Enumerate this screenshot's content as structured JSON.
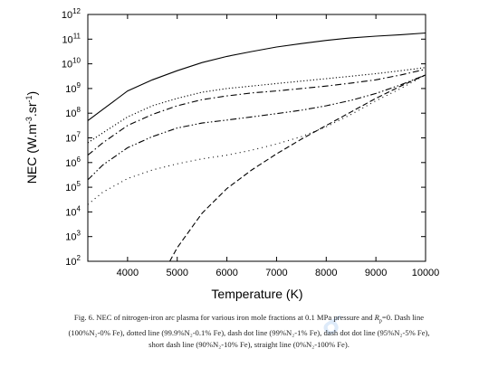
{
  "chart_data": {
    "type": "line",
    "xlabel": "Temperature (K)",
    "ylabel_main": "NEC (W.m",
    "ylabel_exp1": "-3",
    "ylabel_mid": ".sr",
    "ylabel_exp2": "-1",
    "ylabel_end": ")",
    "xlim": [
      3200,
      10000
    ],
    "ylim_log10": [
      2,
      12
    ],
    "y_scale": "log",
    "grid": false,
    "legend": "none",
    "x_ticks": [
      4000,
      5000,
      6000,
      7000,
      8000,
      9000,
      10000
    ],
    "y_tick_exponents": [
      2,
      3,
      4,
      5,
      6,
      7,
      8,
      9,
      10,
      11,
      12
    ],
    "y_tick_base": "10",
    "series": [
      {
        "style": "solid",
        "x": [
          3200,
          3500,
          4000,
          4500,
          5000,
          5500,
          6000,
          6500,
          7000,
          7500,
          8000,
          8500,
          9000,
          9500,
          10000
        ],
        "y_log10": [
          7.7,
          8.15,
          8.9,
          9.35,
          9.72,
          10.05,
          10.3,
          10.5,
          10.68,
          10.82,
          10.95,
          11.05,
          11.12,
          11.18,
          11.25
        ]
      },
      {
        "style": "dotted",
        "x": [
          3200,
          3500,
          4000,
          4500,
          5000,
          5500,
          6000,
          6500,
          7000,
          7500,
          8000,
          8500,
          9000,
          9500,
          10000
        ],
        "y_log10": [
          6.8,
          7.2,
          7.85,
          8.3,
          8.6,
          8.85,
          9.0,
          9.1,
          9.2,
          9.3,
          9.4,
          9.5,
          9.6,
          9.72,
          9.85
        ]
      },
      {
        "style": "dash-dot",
        "x": [
          3200,
          3500,
          4000,
          4500,
          5000,
          5500,
          6000,
          6500,
          7000,
          7500,
          8000,
          8500,
          9000,
          9500,
          10000
        ],
        "y_log10": [
          6.3,
          6.8,
          7.5,
          7.95,
          8.3,
          8.55,
          8.7,
          8.82,
          8.9,
          9.0,
          9.1,
          9.22,
          9.35,
          9.55,
          9.78
        ]
      },
      {
        "style": "dash-dot-dot",
        "x": [
          3200,
          3500,
          4000,
          4500,
          5000,
          5500,
          6000,
          6500,
          7000,
          7500,
          8000,
          8500,
          9000,
          9500,
          10000
        ],
        "y_log10": [
          5.3,
          5.9,
          6.6,
          7.05,
          7.4,
          7.6,
          7.72,
          7.85,
          7.98,
          8.12,
          8.3,
          8.52,
          8.8,
          9.15,
          9.55
        ]
      },
      {
        "style": "short-dash",
        "x": [
          3200,
          3500,
          4000,
          4500,
          5000,
          5500,
          6000,
          6500,
          7000,
          7500,
          8000,
          8500,
          9000,
          9500,
          10000
        ],
        "y_log10": [
          4.3,
          4.8,
          5.35,
          5.7,
          5.95,
          6.15,
          6.3,
          6.5,
          6.75,
          7.05,
          7.45,
          7.95,
          8.5,
          9.0,
          9.55
        ]
      },
      {
        "style": "long-dash",
        "x": [
          4850,
          5000,
          5500,
          6000,
          6500,
          7000,
          7500,
          8000,
          8500,
          9000,
          9500,
          10000
        ],
        "y_log10": [
          2.0,
          2.55,
          3.95,
          4.95,
          5.7,
          6.35,
          6.95,
          7.5,
          8.05,
          8.6,
          9.1,
          9.55
        ]
      }
    ]
  },
  "caption": {
    "line1_a": "Fig. 6. NEC of nitrogen-iron arc plasma for various iron mole fractions at 0.1 MPa pressure and ",
    "rp_sym": "R",
    "rp_sub": "p",
    "line1_b": "=0. Dash line",
    "line2": "(100%N₂-0% Fe), dotted line (99.9%N₂-0.1% Fe), dash dot line (99%N₂-1% Fe), dash dot dot line (95%N₂-5% Fe),",
    "line3": "short dash line (90%N₂-10% Fe), straight line (0%N₂-100% Fe)."
  }
}
